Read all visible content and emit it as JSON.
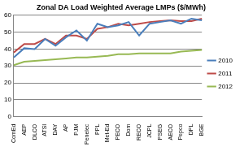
{
  "chart_data": {
    "type": "line",
    "title": "Zonal DA Load Weighted Average LMPs ($/MWh)",
    "categories": [
      "ComEd",
      "AEP",
      "DLCO",
      "ATSI",
      "DAY",
      "AP",
      "PJM",
      "Penelec",
      "PPL",
      "Met-Ed",
      "PECO",
      "Dom",
      "RECO",
      "JCPL",
      "PSEG",
      "AECO",
      "Pepco",
      "DPL",
      "BGE"
    ],
    "series": [
      {
        "name": "2010",
        "color": "#4a7ebb",
        "values": [
          35,
          40.5,
          40,
          46,
          42,
          47,
          51,
          45,
          55,
          53,
          54,
          56,
          48,
          55,
          56,
          57,
          55,
          58,
          57
        ]
      },
      {
        "name": "2011",
        "color": "#be4b48",
        "values": [
          38,
          43,
          43,
          46,
          43,
          48,
          48,
          46,
          52,
          53,
          55,
          54,
          55,
          56,
          56.5,
          57,
          56.5,
          56.5,
          58
        ]
      },
      {
        "name": "2012",
        "color": "#98b954",
        "values": [
          30.5,
          32.5,
          33,
          33.5,
          34,
          34.5,
          35,
          35,
          35.5,
          36,
          37,
          37,
          37.5,
          37.5,
          37.5,
          37.5,
          38.5,
          39,
          39.5
        ]
      }
    ],
    "ylim": [
      0,
      60
    ],
    "yticks": [
      0,
      10,
      20,
      30,
      40,
      50,
      60
    ],
    "grid": true,
    "legend": "right"
  }
}
